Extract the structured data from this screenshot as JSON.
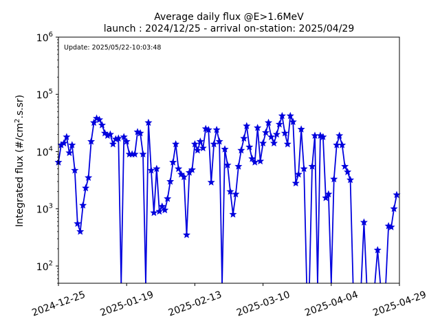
{
  "chart_data": {
    "type": "line",
    "title_line1": "Average daily flux @E>1.6MeV",
    "title_line2": "launch : 2024/12/25 - arrival on-station: 2025/04/29",
    "annotation": "Update: 2025/05/22-10:03:48",
    "ylabel": "Integrated flux (#/cm",
    "ylabel_sup": "2",
    "ylabel_tail": ".s.sr)",
    "yscale": "log",
    "ylim": [
      50,
      1000000
    ],
    "xlim": [
      "2024-12-25",
      "2025-04-29"
    ],
    "x_ticks": [
      "2024-12-25",
      "2025-01-19",
      "2025-02-13",
      "2025-03-10",
      "2025-04-04",
      "2025-04-29"
    ],
    "y_ticks": [
      {
        "value": 100,
        "base": "10",
        "exp": "2"
      },
      {
        "value": 1000,
        "base": "10",
        "exp": "3"
      },
      {
        "value": 10000,
        "base": "10",
        "exp": "4"
      },
      {
        "value": 100000,
        "base": "10",
        "exp": "5"
      },
      {
        "value": 1000000,
        "base": "10",
        "exp": "6"
      }
    ],
    "color": "#0000dd",
    "marker": "star",
    "grid": false,
    "series": [
      {
        "x": [
          "2024-12-25",
          "2024-12-26",
          "2024-12-27",
          "2024-12-28",
          "2024-12-29",
          "2024-12-30",
          "2024-12-31",
          "2025-01-01",
          "2025-01-02",
          "2025-01-03",
          "2025-01-04",
          "2025-01-05",
          "2025-01-06",
          "2025-01-07",
          "2025-01-08",
          "2025-01-09",
          "2025-01-10",
          "2025-01-11",
          "2025-01-12",
          "2025-01-13",
          "2025-01-14",
          "2025-01-15",
          "2025-01-16",
          "2025-01-17",
          "2025-01-18",
          "2025-01-19",
          "2025-01-20",
          "2025-01-21",
          "2025-01-22",
          "2025-01-23",
          "2025-01-24",
          "2025-01-25",
          "2025-01-26",
          "2025-01-27",
          "2025-01-28",
          "2025-01-29",
          "2025-01-30",
          "2025-01-31",
          "2025-02-01",
          "2025-02-02",
          "2025-02-03",
          "2025-02-04",
          "2025-02-05",
          "2025-02-06",
          "2025-02-07",
          "2025-02-08",
          "2025-02-09",
          "2025-02-10",
          "2025-02-11",
          "2025-02-12",
          "2025-02-13",
          "2025-02-14",
          "2025-02-15",
          "2025-02-16",
          "2025-02-17",
          "2025-02-18",
          "2025-02-19",
          "2025-02-20",
          "2025-02-21",
          "2025-02-22",
          "2025-02-23",
          "2025-02-24",
          "2025-02-25",
          "2025-02-26",
          "2025-02-27",
          "2025-02-28",
          "2025-03-01",
          "2025-03-02",
          "2025-03-03",
          "2025-03-04",
          "2025-03-05",
          "2025-03-06",
          "2025-03-07",
          "2025-03-08",
          "2025-03-09",
          "2025-03-10",
          "2025-03-11",
          "2025-03-12",
          "2025-03-13",
          "2025-03-14",
          "2025-03-15",
          "2025-03-16",
          "2025-03-17",
          "2025-03-18",
          "2025-03-19",
          "2025-03-20",
          "2025-03-21",
          "2025-03-22",
          "2025-03-23",
          "2025-03-24",
          "2025-03-25",
          "2025-03-26",
          "2025-03-27",
          "2025-03-28",
          "2025-03-29",
          "2025-03-30",
          "2025-03-31",
          "2025-04-01",
          "2025-04-02",
          "2025-04-03",
          "2025-04-04",
          "2025-04-05",
          "2025-04-06",
          "2025-04-07",
          "2025-04-08",
          "2025-04-09",
          "2025-04-10",
          "2025-04-11",
          "2025-04-12",
          "2025-04-13",
          "2025-04-14",
          "2025-04-15",
          "2025-04-16",
          "2025-04-17",
          "2025-04-18",
          "2025-04-19",
          "2025-04-20",
          "2025-04-21",
          "2025-04-22",
          "2025-04-23",
          "2025-04-24",
          "2025-04-25",
          "2025-04-26",
          "2025-04-27",
          "2025-04-28"
        ],
        "y": [
          6500,
          13000,
          14000,
          18000,
          9500,
          13000,
          4700,
          550,
          400,
          1150,
          2300,
          3500,
          15000,
          32000,
          38000,
          36000,
          29000,
          21000,
          19000,
          20000,
          13500,
          16500,
          17000,
          null,
          18000,
          15000,
          9000,
          9000,
          9000,
          22000,
          21000,
          9000,
          null,
          32000,
          4700,
          850,
          5000,
          900,
          1100,
          950,
          1500,
          3000,
          6500,
          13500,
          5000,
          4000,
          3600,
          350,
          4300,
          4800,
          13500,
          10500,
          15000,
          11500,
          25000,
          24000,
          2900,
          13500,
          24000,
          15000,
          null,
          11000,
          5800,
          2000,
          800,
          1800,
          5500,
          10500,
          17000,
          28000,
          12000,
          7500,
          6500,
          26000,
          6800,
          14000,
          21500,
          32000,
          18000,
          14000,
          20000,
          30000,
          42000,
          21000,
          13500,
          42000,
          33000,
          2800,
          4000,
          24500,
          5000,
          null,
          null,
          5500,
          19000,
          null,
          19000,
          18000,
          1550,
          1800,
          null,
          3300,
          13000,
          19000,
          13000,
          5500,
          4400,
          3200,
          null,
          null,
          null,
          null,
          580,
          null,
          null,
          null,
          null,
          190,
          null,
          null,
          null,
          500,
          480,
          1000,
          1750
        ]
      }
    ]
  }
}
